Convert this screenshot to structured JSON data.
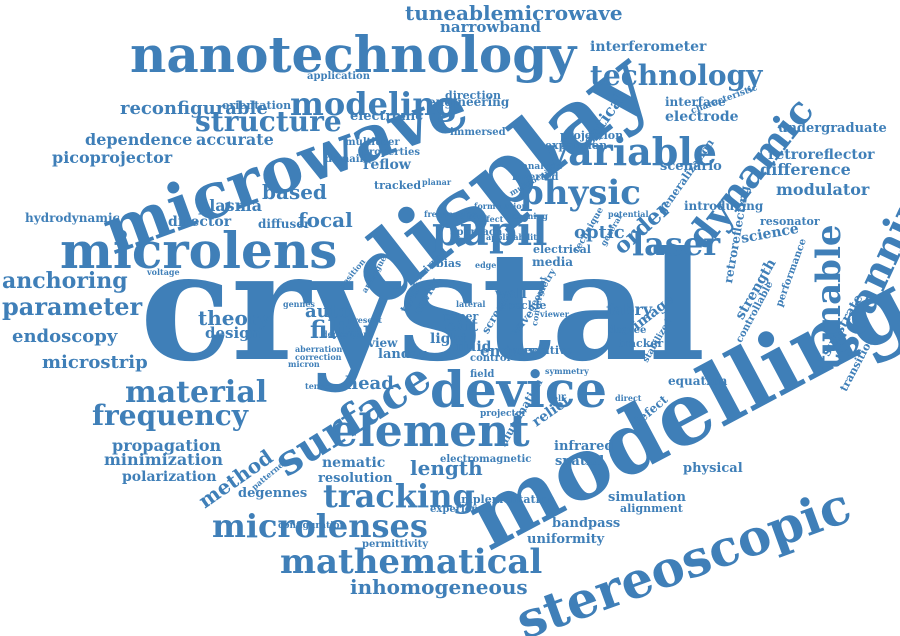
{
  "color": "#3f7fb8",
  "words": [
    "crystal",
    "modelling",
    "display",
    "microwave",
    "device",
    "microlens",
    "nanotechnology",
    "stereoscopic",
    "element",
    "surface",
    "pupil",
    "scanning",
    "tunable",
    "variable",
    "physic",
    "laser",
    "dynamic",
    "mathematical",
    "microlenses",
    "tracking",
    "modeling",
    "technology",
    "material",
    "frequency",
    "anchoring",
    "parameter",
    "structure",
    "tuneablemicrowave",
    "filter",
    "inhomogeneous",
    "length",
    "method",
    "order",
    "focal",
    "optic",
    "head",
    "auto",
    "theory",
    "endoscopy",
    "microstrip",
    "difference",
    "modulator",
    "based",
    "reconfigurable",
    "picoprojector",
    "dependence",
    "accurate",
    "plasma",
    "director",
    "design",
    "propagation",
    "minimization",
    "polarization",
    "degennes",
    "resolution",
    "nematic",
    "permittivity",
    "uniformity",
    "bandpass",
    "simulation",
    "alignment",
    "physical",
    "infrared",
    "relief",
    "spatial",
    "science",
    "strength",
    "substrate",
    "transition",
    "retroreflector",
    "undergraduate",
    "interferometer",
    "narrowband",
    "interface",
    "electrode",
    "optical",
    "reflow",
    "hydrodynamic",
    "equation",
    "defect",
    "fabry",
    "exit",
    "light",
    "energy",
    "fluid",
    "wall",
    "speckle",
    "image",
    "degree",
    "tracker",
    "landau",
    "view",
    "paper",
    "media",
    "electrical",
    "introducing",
    "resonator",
    "retroreflecting",
    "performance",
    "controllable",
    "engineering",
    "application",
    "orientation",
    "direction",
    "electronic",
    "projection",
    "immersed",
    "multiuser",
    "properties",
    "domain",
    "tracked",
    "diffuser",
    "scenario",
    "expansion",
    "analysis",
    "inverted",
    "generalization",
    "characteristic",
    "voltage",
    "position",
    "present",
    "deposition",
    "gennes",
    "insensitive",
    "illumination",
    "implementation",
    "experience",
    "electromagnetic",
    "configuration",
    "patterned",
    "tensor",
    "twist",
    "cavity",
    "screen",
    "geometry",
    "projector",
    "wave",
    "bias",
    "cell",
    "field",
    "control",
    "direct",
    "stabilized",
    "technique",
    "general",
    "potential",
    "learning",
    "frequencies",
    "formulation",
    "effect",
    "colour",
    "approach",
    "planar",
    "multibeam",
    "mirror",
    "viewer",
    "lateral",
    "edge",
    "micron",
    "analogue",
    "convergent",
    "correction",
    "aberration",
    "applicability",
    "symmetry",
    "vertical"
  ]
}
